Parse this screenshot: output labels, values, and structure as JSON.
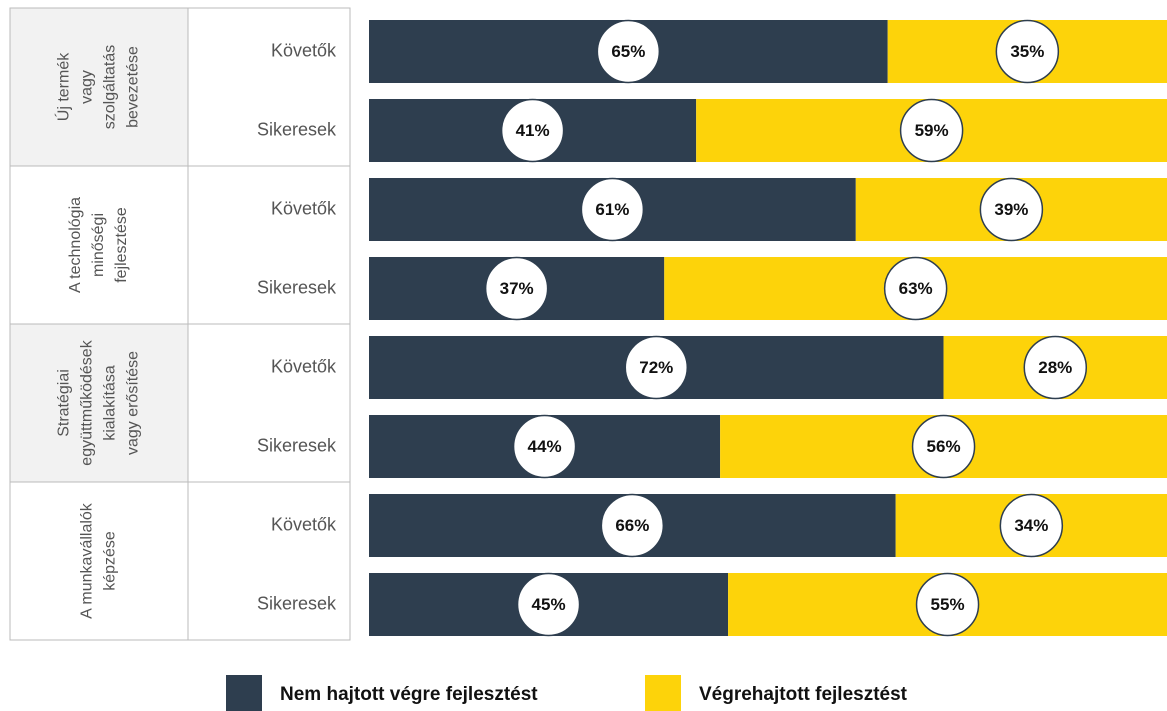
{
  "chart_data": {
    "type": "stacked-bar-horizontal",
    "groups": [
      [
        "Új termék",
        "vagy",
        "szolgáltatás",
        "bevezetése"
      ],
      [
        "A technológia",
        "minőségi",
        "fejlesztése"
      ],
      [
        "Stratégiai",
        "együttműködések",
        "kialakítása",
        "vagy erősítése"
      ],
      [
        "A munkavállalók",
        "képzése"
      ]
    ],
    "categories": [
      "Követők",
      "Sikeresek",
      "Követők",
      "Sikeresek",
      "Követők",
      "Sikeresek",
      "Követők",
      "Sikeresek"
    ],
    "series": [
      {
        "name": "Nem hajtott végre fejlesztést",
        "color": "#2e3e4f",
        "values": [
          65,
          41,
          61,
          37,
          72,
          44,
          66,
          45
        ],
        "value_labels": [
          "65%",
          "41%",
          "61%",
          "37%",
          "72%",
          "44%",
          "66%",
          "45%"
        ]
      },
      {
        "name": "Végrehajtott fejlesztést",
        "color": "#fdd30a",
        "values": [
          35,
          59,
          39,
          63,
          28,
          56,
          34,
          55
        ],
        "value_labels": [
          "35%",
          "59%",
          "39%",
          "63%",
          "28%",
          "56%",
          "34%",
          "55%"
        ]
      }
    ],
    "xlim": [
      0,
      100
    ]
  }
}
